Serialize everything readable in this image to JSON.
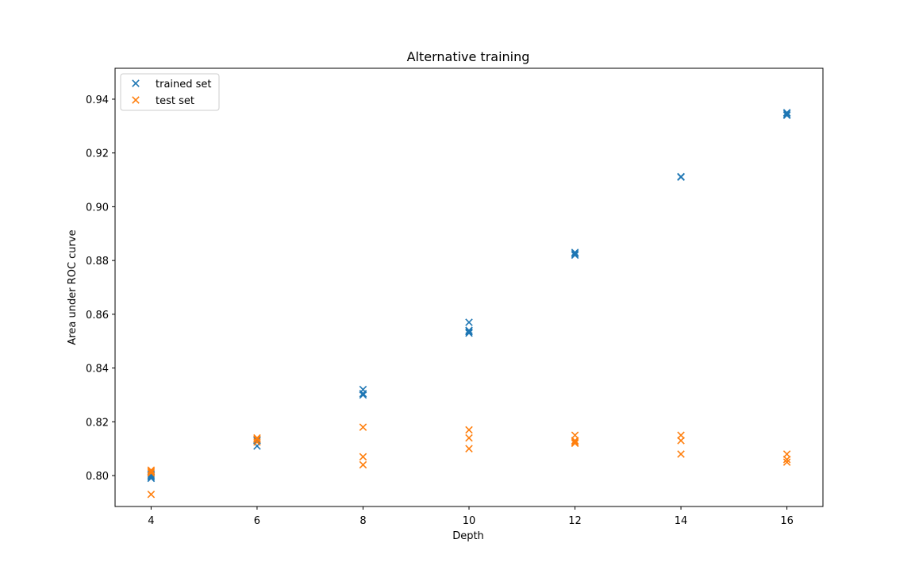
{
  "chart_data": {
    "type": "scatter",
    "title": "Alternative training",
    "xlabel": "Depth",
    "ylabel": "Area under ROC curve",
    "xlim": [
      3.32,
      16.68
    ],
    "ylim": [
      0.7885,
      0.9515
    ],
    "xticks": [
      4,
      6,
      8,
      10,
      12,
      14,
      16
    ],
    "yticks": [
      0.8,
      0.82,
      0.84,
      0.86,
      0.88,
      0.9,
      0.92,
      0.94
    ],
    "grid": false,
    "legend_position": "top-left",
    "marker": "x",
    "series": [
      {
        "name": "trained set",
        "color": "#1f77b4",
        "points": [
          [
            4,
            0.799
          ],
          [
            4,
            0.7995
          ],
          [
            4,
            0.8
          ],
          [
            4,
            0.8005
          ],
          [
            6,
            0.811
          ],
          [
            6,
            0.813
          ],
          [
            6,
            0.8135
          ],
          [
            8,
            0.83
          ],
          [
            8,
            0.8305
          ],
          [
            8,
            0.832
          ],
          [
            10,
            0.853
          ],
          [
            10,
            0.8535
          ],
          [
            10,
            0.854
          ],
          [
            10,
            0.857
          ],
          [
            12,
            0.882
          ],
          [
            12,
            0.8825
          ],
          [
            12,
            0.883
          ],
          [
            14,
            0.911
          ],
          [
            14,
            0.9112
          ],
          [
            16,
            0.934
          ],
          [
            16,
            0.9345
          ],
          [
            16,
            0.935
          ]
        ]
      },
      {
        "name": "test set",
        "color": "#ff7f0e",
        "points": [
          [
            4,
            0.793
          ],
          [
            4,
            0.801
          ],
          [
            4,
            0.8015
          ],
          [
            4,
            0.802
          ],
          [
            6,
            0.8125
          ],
          [
            6,
            0.8135
          ],
          [
            6,
            0.814
          ],
          [
            8,
            0.804
          ],
          [
            8,
            0.807
          ],
          [
            8,
            0.818
          ],
          [
            10,
            0.81
          ],
          [
            10,
            0.814
          ],
          [
            10,
            0.817
          ],
          [
            12,
            0.812
          ],
          [
            12,
            0.8125
          ],
          [
            12,
            0.813
          ],
          [
            12,
            0.815
          ],
          [
            14,
            0.808
          ],
          [
            14,
            0.813
          ],
          [
            14,
            0.815
          ],
          [
            16,
            0.805
          ],
          [
            16,
            0.806
          ],
          [
            16,
            0.808
          ]
        ]
      }
    ]
  }
}
